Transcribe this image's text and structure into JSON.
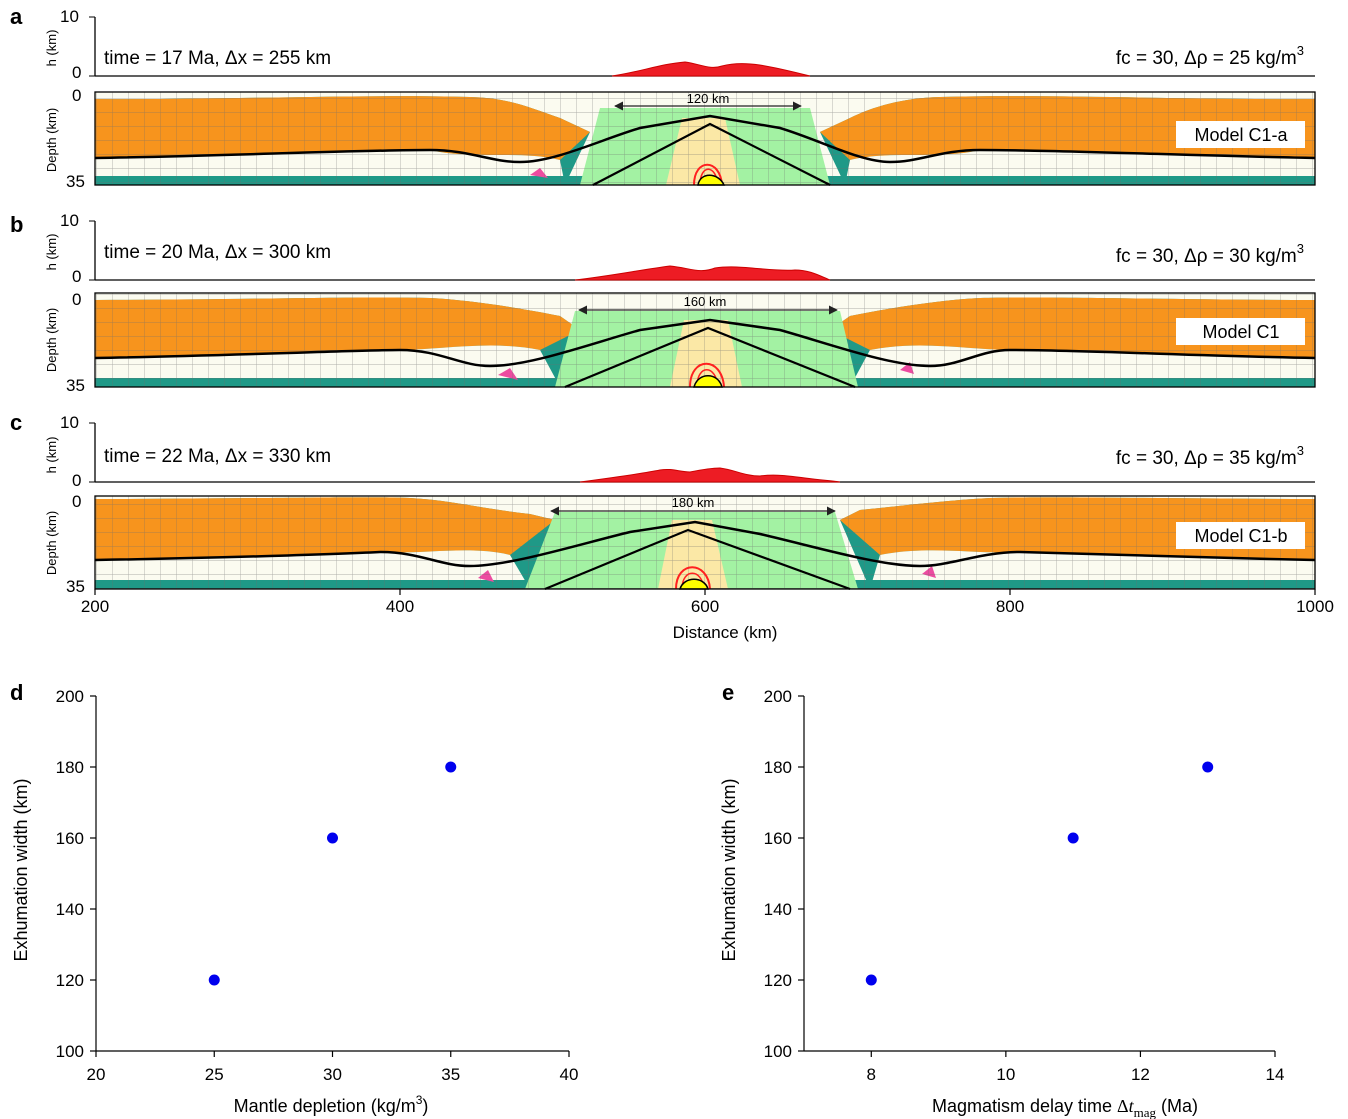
{
  "colors": {
    "upper_crust": "#f7941d",
    "exhumed_mantle": "#a3f2a3",
    "serpentinite": "#1f9987",
    "sediment": "#fbfbf0",
    "melt_zone": "#fbe8a6",
    "topography": "#ed1c24",
    "melt_core": "#ffff00",
    "magenta": "#ec4ba0",
    "grid": "#707070",
    "point": "#0000ee"
  },
  "panels": [
    {
      "label": "a",
      "h_ylabel": "h (km)",
      "h_ticks": [
        "10",
        "0"
      ],
      "depth_ylabel": "Depth (km)",
      "depth_ticks": [
        "0",
        "35"
      ],
      "time_text": "time = 17 Ma, Δx = 255 km",
      "params_text": "fc = 30, Δρ = 25 kg/m",
      "params_sup": "3",
      "width_label": "120 km",
      "model_name": "Model C1-a",
      "exhumation_width_km": 120
    },
    {
      "label": "b",
      "h_ylabel": "h (km)",
      "h_ticks": [
        "10",
        "0"
      ],
      "depth_ylabel": "Depth (km)",
      "depth_ticks": [
        "0",
        "35"
      ],
      "time_text": "time = 20 Ma, Δx = 300 km",
      "params_text": "fc = 30, Δρ = 30 kg/m",
      "params_sup": "3",
      "width_label": "160 km",
      "model_name": "Model C1",
      "exhumation_width_km": 160
    },
    {
      "label": "c",
      "h_ylabel": "h (km)",
      "h_ticks": [
        "10",
        "0"
      ],
      "depth_ylabel": "Depth (km)",
      "depth_ticks": [
        "0",
        "35"
      ],
      "time_text": "time = 22 Ma, Δx = 330 km",
      "params_text": "fc = 30, Δρ = 35 kg/m",
      "params_sup": "3",
      "width_label": "180 km",
      "model_name": "Model C1-b",
      "exhumation_width_km": 180
    }
  ],
  "sections_xaxis": {
    "label": "Distance (km)",
    "range": [
      200,
      1000
    ],
    "ticks": [
      "200",
      "400",
      "600",
      "800",
      "1000"
    ]
  },
  "chart_data": [
    {
      "type": "scatter",
      "panel": "d",
      "xlabel_prefix": "Mantle depletion (kg/m",
      "xlabel_sup": "3",
      "xlabel_suffix": ")",
      "ylabel": "Exhumation width (km)",
      "xlim": [
        20,
        40
      ],
      "ylim": [
        100,
        200
      ],
      "x_ticks": [
        "20",
        "25",
        "30",
        "35",
        "40"
      ],
      "y_ticks": [
        "100",
        "120",
        "140",
        "160",
        "180",
        "200"
      ],
      "x": [
        25,
        30,
        35
      ],
      "y": [
        120,
        160,
        180
      ]
    },
    {
      "type": "scatter",
      "panel": "e",
      "xlabel_prefix": "Magmatism delay time ",
      "xlabel_delta": "Δ",
      "xlabel_var": "t",
      "xlabel_sub": "mag",
      "xlabel_suffix": " (Ma)",
      "ylabel": "Exhumation width (km)",
      "xlim": [
        7,
        14
      ],
      "ylim": [
        100,
        200
      ],
      "x_ticks": [
        "8",
        "10",
        "12",
        "14"
      ],
      "y_ticks": [
        "100",
        "120",
        "140",
        "160",
        "180",
        "200"
      ],
      "x": [
        8,
        11,
        13
      ],
      "y": [
        120,
        160,
        180
      ]
    }
  ]
}
